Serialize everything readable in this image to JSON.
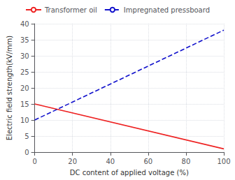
{
  "chart_data": {
    "type": "line",
    "xlabel": "DC content of applied voltage (%)",
    "ylabel": "Electric field strength(kV/mm)",
    "x": [
      0,
      100
    ],
    "series": [
      {
        "name": "Transformer oil",
        "color": "#ee2222",
        "line_style": "solid",
        "values": [
          15,
          1
        ]
      },
      {
        "name": "Impregnated pressboard",
        "color": "#1111cc",
        "line_style": "dashed",
        "values": [
          10,
          38
        ]
      }
    ],
    "xlim": [
      0,
      100
    ],
    "ylim": [
      0,
      40
    ],
    "xticks": [
      0,
      20,
      40,
      60,
      80,
      100
    ],
    "yticks": [
      0,
      5,
      10,
      15,
      20,
      25,
      30,
      35,
      40
    ],
    "grid": true,
    "legend": "top"
  }
}
